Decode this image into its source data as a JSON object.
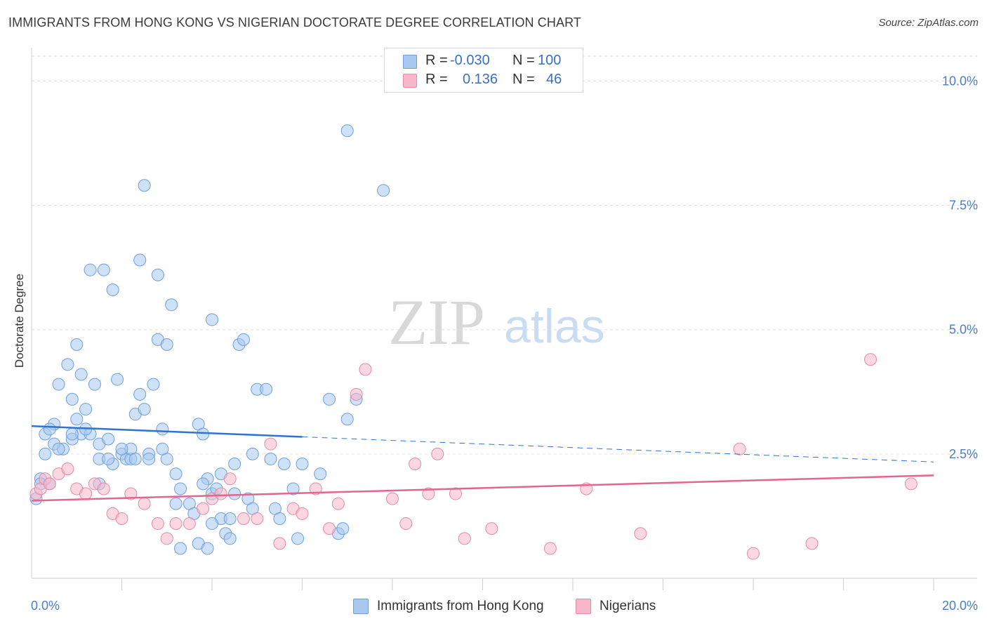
{
  "title": "IMMIGRANTS FROM HONG KONG VS NIGERIAN DOCTORATE DEGREE CORRELATION CHART",
  "source": "Source: ZipAtlas.com",
  "watermark": {
    "zip": "ZIP",
    "atlas": "atlas"
  },
  "colors": {
    "blue_fill": "#a8c8f0",
    "blue_stroke": "#6f9fdc",
    "blue_line": "#2f74d0",
    "pink_fill": "#f7b6c9",
    "pink_stroke": "#e58aa8",
    "pink_line": "#e2668f",
    "tick_text": "#4a7ec8",
    "grid": "#e0e0e0"
  },
  "legend": {
    "r_label": "R =",
    "n_label": "N =",
    "rows": [
      {
        "r": "-0.030",
        "n": "100"
      },
      {
        "r": "0.136",
        "n": "46"
      }
    ]
  },
  "chart_data": {
    "type": "scatter",
    "title": "IMMIGRANTS FROM HONG KONG VS NIGERIAN DOCTORATE DEGREE CORRELATION CHART",
    "xlabel": "",
    "ylabel": "Doctorate Degree",
    "xlim": [
      0,
      20
    ],
    "ylim": [
      0,
      10.5
    ],
    "x_tick_labels": [
      {
        "value": 0,
        "label": "0.0%"
      },
      {
        "value": 20,
        "label": "20.0%"
      }
    ],
    "y_tick_labels": [
      {
        "value": 2.5,
        "label": "2.5%"
      },
      {
        "value": 5.0,
        "label": "5.0%"
      },
      {
        "value": 7.5,
        "label": "7.5%"
      },
      {
        "value": 10.0,
        "label": "10.0%"
      }
    ],
    "grid": true,
    "legend_position": "top-center",
    "series": [
      {
        "name": "Immigrants from Hong Kong",
        "color": "blue",
        "R": -0.03,
        "N": 100,
        "trend": {
          "x_start": 0,
          "y_start": 3.06,
          "x_end": 20,
          "y_end": 2.34,
          "solid_until_x": 6
        },
        "points": [
          [
            0.1,
            1.6
          ],
          [
            0.2,
            2.0
          ],
          [
            0.3,
            2.5
          ],
          [
            0.4,
            1.9
          ],
          [
            0.3,
            2.9
          ],
          [
            0.5,
            3.1
          ],
          [
            0.4,
            3.0
          ],
          [
            0.6,
            3.9
          ],
          [
            0.7,
            2.6
          ],
          [
            0.5,
            2.7
          ],
          [
            0.8,
            4.3
          ],
          [
            0.9,
            3.6
          ],
          [
            1.0,
            3.2
          ],
          [
            1.1,
            2.9
          ],
          [
            0.9,
            2.8
          ],
          [
            1.2,
            3.4
          ],
          [
            1.3,
            2.9
          ],
          [
            1.0,
            4.7
          ],
          [
            1.4,
            3.9
          ],
          [
            1.5,
            2.7
          ],
          [
            1.5,
            2.4
          ],
          [
            1.1,
            4.1
          ],
          [
            1.3,
            6.2
          ],
          [
            1.6,
            6.2
          ],
          [
            1.7,
            2.8
          ],
          [
            1.8,
            2.3
          ],
          [
            1.9,
            4.0
          ],
          [
            2.0,
            2.5
          ],
          [
            2.1,
            2.4
          ],
          [
            1.8,
            5.8
          ],
          [
            2.2,
            2.4
          ],
          [
            2.2,
            2.6
          ],
          [
            2.3,
            3.3
          ],
          [
            2.4,
            3.7
          ],
          [
            2.5,
            3.4
          ],
          [
            2.6,
            2.5
          ],
          [
            2.7,
            3.9
          ],
          [
            2.8,
            6.1
          ],
          [
            2.9,
            3.0
          ],
          [
            2.8,
            4.8
          ],
          [
            3.0,
            2.4
          ],
          [
            3.1,
            5.5
          ],
          [
            3.0,
            4.7
          ],
          [
            2.4,
            6.4
          ],
          [
            2.5,
            7.9
          ],
          [
            3.2,
            2.1
          ],
          [
            3.3,
            1.8
          ],
          [
            3.5,
            1.5
          ],
          [
            3.6,
            1.3
          ],
          [
            3.7,
            3.1
          ],
          [
            3.8,
            2.9
          ],
          [
            3.9,
            2.0
          ],
          [
            4.0,
            1.7
          ],
          [
            4.1,
            1.8
          ],
          [
            4.2,
            1.2
          ],
          [
            4.3,
            0.9
          ],
          [
            4.4,
            1.2
          ],
          [
            4.5,
            2.3
          ],
          [
            4.6,
            4.7
          ],
          [
            4.7,
            4.8
          ],
          [
            4.8,
            1.6
          ],
          [
            4.9,
            2.5
          ],
          [
            5.0,
            3.8
          ],
          [
            5.2,
            3.8
          ],
          [
            5.3,
            2.4
          ],
          [
            5.4,
            1.4
          ],
          [
            5.5,
            1.2
          ],
          [
            5.6,
            2.3
          ],
          [
            5.8,
            1.8
          ],
          [
            6.0,
            2.3
          ],
          [
            6.4,
            2.1
          ],
          [
            6.6,
            3.6
          ],
          [
            6.8,
            0.9
          ],
          [
            7.0,
            3.2
          ],
          [
            7.2,
            3.6
          ],
          [
            7.0,
            9.0
          ],
          [
            7.8,
            7.8
          ],
          [
            3.7,
            0.7
          ],
          [
            3.9,
            0.6
          ],
          [
            4.4,
            0.8
          ],
          [
            5.9,
            0.8
          ],
          [
            6.9,
            1.0
          ],
          [
            3.3,
            0.6
          ],
          [
            4.9,
            1.4
          ],
          [
            4.0,
            1.1
          ],
          [
            0.2,
            1.9
          ],
          [
            0.6,
            2.6
          ],
          [
            1.5,
            1.9
          ],
          [
            2.0,
            2.6
          ],
          [
            2.3,
            2.4
          ],
          [
            3.2,
            1.5
          ],
          [
            4.2,
            2.1
          ],
          [
            1.7,
            2.4
          ],
          [
            2.6,
            2.4
          ],
          [
            0.9,
            2.9
          ],
          [
            4.0,
            5.2
          ],
          [
            4.5,
            1.7
          ],
          [
            1.2,
            3.0
          ],
          [
            2.9,
            2.6
          ],
          [
            3.8,
            1.9
          ]
        ]
      },
      {
        "name": "Nigerians",
        "color": "pink",
        "R": 0.136,
        "N": 46,
        "trend": {
          "x_start": 0,
          "y_start": 1.56,
          "x_end": 20,
          "y_end": 2.07
        },
        "points": [
          [
            0.1,
            1.7
          ],
          [
            0.2,
            1.8
          ],
          [
            0.3,
            2.0
          ],
          [
            0.4,
            1.9
          ],
          [
            0.6,
            2.1
          ],
          [
            0.8,
            2.2
          ],
          [
            1.0,
            1.8
          ],
          [
            1.2,
            1.7
          ],
          [
            1.4,
            1.9
          ],
          [
            1.6,
            1.8
          ],
          [
            1.8,
            1.3
          ],
          [
            2.0,
            1.2
          ],
          [
            2.2,
            1.7
          ],
          [
            2.5,
            1.5
          ],
          [
            2.8,
            1.1
          ],
          [
            3.0,
            0.8
          ],
          [
            3.2,
            1.1
          ],
          [
            3.5,
            1.1
          ],
          [
            3.8,
            1.4
          ],
          [
            4.0,
            1.6
          ],
          [
            4.2,
            1.7
          ],
          [
            4.4,
            2.0
          ],
          [
            4.7,
            1.2
          ],
          [
            5.0,
            1.2
          ],
          [
            5.3,
            2.7
          ],
          [
            5.5,
            0.7
          ],
          [
            5.8,
            1.4
          ],
          [
            6.0,
            1.3
          ],
          [
            6.3,
            1.8
          ],
          [
            6.6,
            1.0
          ],
          [
            6.8,
            1.5
          ],
          [
            7.2,
            3.7
          ],
          [
            7.4,
            4.2
          ],
          [
            8.0,
            1.6
          ],
          [
            8.3,
            1.1
          ],
          [
            8.5,
            2.3
          ],
          [
            8.8,
            1.7
          ],
          [
            9.0,
            2.5
          ],
          [
            9.4,
            1.7
          ],
          [
            9.6,
            0.8
          ],
          [
            10.2,
            1.0
          ],
          [
            11.5,
            0.6
          ],
          [
            12.3,
            1.8
          ],
          [
            13.5,
            0.9
          ],
          [
            15.7,
            2.6
          ],
          [
            17.3,
            0.7
          ]
        ],
        "outliers": [
          [
            18.6,
            4.4
          ],
          [
            19.5,
            1.9
          ],
          [
            16.0,
            0.5
          ]
        ]
      }
    ]
  },
  "bottom_legend": [
    {
      "label": "Immigrants from Hong Kong"
    },
    {
      "label": "Nigerians"
    }
  ]
}
